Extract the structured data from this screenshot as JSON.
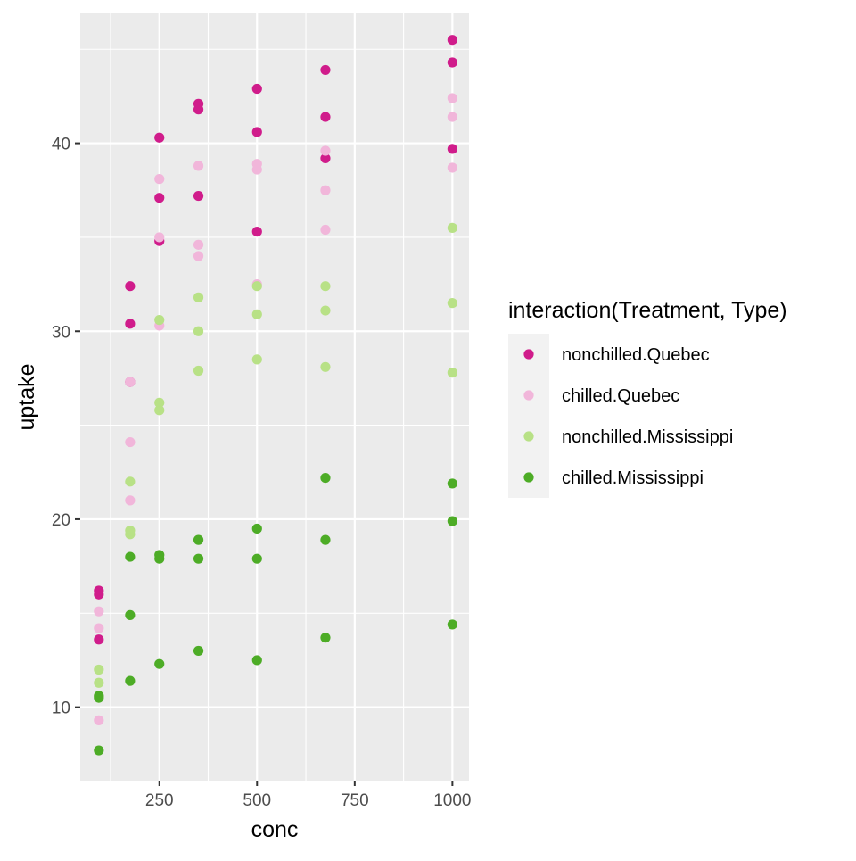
{
  "chart_data": {
    "type": "scatter",
    "xlabel": "conc",
    "ylabel": "uptake",
    "xlim": [
      47.5,
      1042.5
    ],
    "ylim": [
      6.09,
      46.91
    ],
    "x_ticks": [
      250,
      500,
      750,
      1000
    ],
    "y_ticks": [
      10,
      20,
      30,
      40
    ],
    "grid": true,
    "legend": {
      "title": "interaction(Treatment, Type)",
      "position": "right"
    },
    "series": [
      {
        "name": "nonchilled.Quebec",
        "color": "#d01c8b",
        "points": [
          [
            95,
            16.0
          ],
          [
            175,
            30.4
          ],
          [
            250,
            34.8
          ],
          [
            350,
            37.2
          ],
          [
            500,
            35.3
          ],
          [
            675,
            39.2
          ],
          [
            1000,
            39.7
          ],
          [
            95,
            13.6
          ],
          [
            175,
            27.3
          ],
          [
            250,
            37.1
          ],
          [
            350,
            41.8
          ],
          [
            500,
            40.6
          ],
          [
            675,
            41.4
          ],
          [
            1000,
            44.3
          ],
          [
            95,
            16.2
          ],
          [
            175,
            32.4
          ],
          [
            250,
            40.3
          ],
          [
            350,
            42.1
          ],
          [
            500,
            42.9
          ],
          [
            675,
            43.9
          ],
          [
            1000,
            45.5
          ]
        ]
      },
      {
        "name": "chilled.Quebec",
        "color": "#f1b6da",
        "points": [
          [
            95,
            14.2
          ],
          [
            175,
            24.1
          ],
          [
            250,
            30.3
          ],
          [
            350,
            34.6
          ],
          [
            500,
            32.5
          ],
          [
            675,
            35.4
          ],
          [
            1000,
            38.7
          ],
          [
            95,
            9.3
          ],
          [
            175,
            27.3
          ],
          [
            250,
            35.0
          ],
          [
            350,
            38.8
          ],
          [
            500,
            38.6
          ],
          [
            675,
            37.5
          ],
          [
            1000,
            42.4
          ],
          [
            95,
            15.1
          ],
          [
            175,
            21.0
          ],
          [
            250,
            38.1
          ],
          [
            350,
            34.0
          ],
          [
            500,
            38.9
          ],
          [
            675,
            39.6
          ],
          [
            1000,
            41.4
          ]
        ]
      },
      {
        "name": "nonchilled.Mississippi",
        "color": "#b8e186",
        "points": [
          [
            95,
            10.6
          ],
          [
            175,
            19.2
          ],
          [
            250,
            26.2
          ],
          [
            350,
            30.0
          ],
          [
            500,
            30.9
          ],
          [
            675,
            32.4
          ],
          [
            1000,
            35.5
          ],
          [
            95,
            12.0
          ],
          [
            175,
            22.0
          ],
          [
            250,
            30.6
          ],
          [
            350,
            31.8
          ],
          [
            500,
            32.4
          ],
          [
            675,
            31.1
          ],
          [
            1000,
            31.5
          ],
          [
            95,
            11.3
          ],
          [
            175,
            19.4
          ],
          [
            250,
            25.8
          ],
          [
            350,
            27.9
          ],
          [
            500,
            28.5
          ],
          [
            675,
            28.1
          ],
          [
            1000,
            27.8
          ]
        ]
      },
      {
        "name": "chilled.Mississippi",
        "color": "#4dac26",
        "points": [
          [
            95,
            10.5
          ],
          [
            175,
            14.9
          ],
          [
            250,
            18.1
          ],
          [
            350,
            18.9
          ],
          [
            500,
            19.5
          ],
          [
            675,
            22.2
          ],
          [
            1000,
            21.9
          ],
          [
            95,
            7.7
          ],
          [
            175,
            11.4
          ],
          [
            250,
            12.3
          ],
          [
            350,
            13.0
          ],
          [
            500,
            12.5
          ],
          [
            675,
            13.7
          ],
          [
            1000,
            14.4
          ],
          [
            95,
            10.6
          ],
          [
            175,
            18.0
          ],
          [
            250,
            17.9
          ],
          [
            350,
            17.9
          ],
          [
            500,
            17.9
          ],
          [
            675,
            18.9
          ],
          [
            1000,
            19.9
          ]
        ]
      }
    ]
  }
}
